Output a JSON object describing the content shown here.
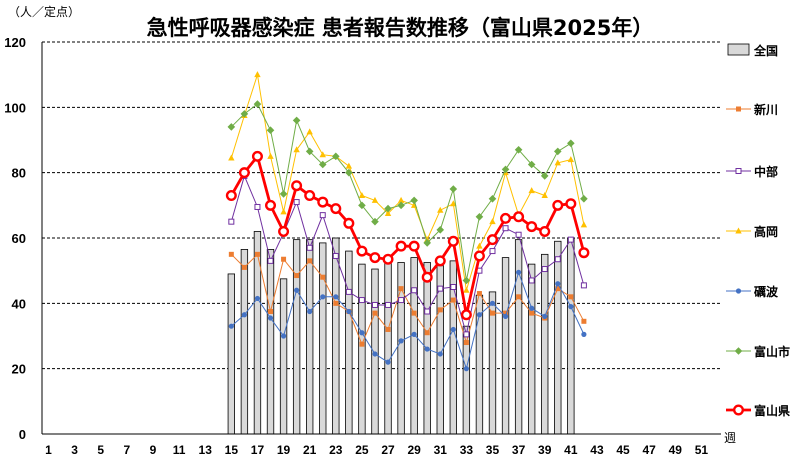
{
  "chart_data": {
    "type": "bar",
    "title": "急性呼吸器感染症 患者報告数推移（富山県2025年）",
    "ylabel": "（人／定点）",
    "xlabel": "週",
    "ylim": [
      0,
      120
    ],
    "yticks": [
      0,
      20,
      40,
      60,
      80,
      100,
      120
    ],
    "xlim": [
      1,
      52
    ],
    "xticks": [
      "1",
      "3",
      "5",
      "7",
      "9",
      "11",
      "13",
      "15",
      "17",
      "19",
      "21",
      "23",
      "25",
      "27",
      "29",
      "31",
      "33",
      "35",
      "37",
      "39",
      "41",
      "43",
      "45",
      "47",
      "49",
      "51"
    ],
    "grid": "horizontal dashed",
    "legend_position": "right",
    "bar_series": {
      "name": "全国",
      "x": [
        15,
        16,
        17,
        18,
        19,
        20,
        21,
        22,
        23,
        24,
        25,
        26,
        27,
        28,
        29,
        30,
        31,
        32,
        33,
        34,
        35,
        36,
        37,
        38,
        39,
        40,
        41
      ],
      "values": [
        49,
        56.5,
        62,
        56.5,
        47.5,
        59.5,
        59.5,
        58.5,
        60,
        56,
        52,
        50.5,
        52.5,
        52.5,
        54,
        52.5,
        51.5,
        53,
        33,
        42.5,
        43.5,
        54,
        59.5,
        52,
        55,
        59,
        60
      ],
      "color": "#d9d9d9"
    },
    "series": [
      {
        "name": "新川",
        "color": "#ed7d31",
        "marker": "square",
        "x": [
          15,
          16,
          17,
          18,
          19,
          20,
          21,
          22,
          23,
          24,
          25,
          26,
          27,
          28,
          29,
          30,
          31,
          32,
          33,
          34,
          35,
          36,
          37,
          38,
          39,
          40,
          41,
          42
        ],
        "values": [
          55,
          51,
          55,
          37.5,
          53.5,
          48.5,
          53,
          48,
          40,
          37.5,
          27.5,
          37,
          32,
          44.5,
          37,
          31,
          38,
          41,
          28,
          43,
          37,
          37,
          42,
          37,
          35.5,
          44.5,
          42,
          34.5
        ]
      },
      {
        "name": "中部",
        "color": "#7030a0",
        "marker": "open-square",
        "x": [
          15,
          16,
          17,
          18,
          19,
          20,
          21,
          22,
          23,
          24,
          25,
          26,
          27,
          28,
          29,
          30,
          31,
          32,
          33,
          34,
          35,
          36,
          37,
          38,
          39,
          40,
          41,
          42
        ],
        "values": [
          65,
          79,
          69.5,
          53,
          61.5,
          71,
          57,
          67,
          54.5,
          43.5,
          41,
          39.5,
          39.5,
          41,
          44,
          37.5,
          44.5,
          45,
          30.5,
          50,
          56,
          63,
          61,
          47,
          50.5,
          53.5,
          59.5,
          45.5
        ]
      },
      {
        "name": "高岡",
        "color": "#ffc000",
        "marker": "triangle",
        "x": [
          15,
          16,
          17,
          18,
          19,
          20,
          21,
          22,
          23,
          24,
          25,
          26,
          27,
          28,
          29,
          30,
          31,
          32,
          33,
          34,
          35,
          36,
          37,
          38,
          39,
          40,
          41,
          42
        ],
        "values": [
          84.5,
          97.5,
          110,
          85,
          68,
          87,
          92.5,
          85.5,
          85,
          82,
          73,
          71.5,
          67.5,
          71.5,
          70,
          59.5,
          68.5,
          70.5,
          44,
          57.5,
          65,
          80,
          67,
          74.5,
          73,
          83,
          84,
          64
        ]
      },
      {
        "name": "礪波",
        "color": "#4472c4",
        "marker": "circle",
        "x": [
          15,
          16,
          17,
          18,
          19,
          20,
          21,
          22,
          23,
          24,
          25,
          26,
          27,
          28,
          29,
          30,
          31,
          32,
          33,
          34,
          35,
          36,
          37,
          38,
          39,
          40,
          41,
          42
        ],
        "values": [
          33,
          36.5,
          41.5,
          35.5,
          30,
          44,
          37.5,
          42,
          42,
          37.5,
          31,
          24.5,
          22,
          28.5,
          30.5,
          26,
          24.5,
          32,
          20,
          36.5,
          40,
          36,
          49.5,
          38.5,
          36,
          46,
          39,
          30.5
        ]
      },
      {
        "name": "富山市",
        "color": "#70ad47",
        "marker": "diamond",
        "x": [
          15,
          16,
          17,
          18,
          19,
          20,
          21,
          22,
          23,
          24,
          25,
          26,
          27,
          28,
          29,
          30,
          31,
          32,
          33,
          34,
          35,
          36,
          37,
          38,
          39,
          40,
          41,
          42
        ],
        "values": [
          94,
          98,
          101,
          93,
          73.5,
          96,
          86.5,
          82.5,
          85,
          80,
          70,
          65,
          69,
          70,
          71.5,
          58.5,
          62.5,
          75,
          47,
          66.5,
          72,
          81,
          87,
          82.5,
          79,
          86.5,
          89,
          72
        ]
      },
      {
        "name": "富山県",
        "color": "#ff0000",
        "marker": "big-open-circle",
        "x": [
          15,
          16,
          17,
          18,
          19,
          20,
          21,
          22,
          23,
          24,
          25,
          26,
          27,
          28,
          29,
          30,
          31,
          32,
          33,
          34,
          35,
          36,
          37,
          38,
          39,
          40,
          41,
          42
        ],
        "values": [
          73,
          80,
          85,
          70,
          62,
          76,
          73,
          71,
          69,
          64.5,
          56,
          54,
          53.5,
          57.5,
          57.5,
          48,
          53,
          59,
          36.5,
          54.5,
          59.5,
          66,
          66.5,
          63.5,
          62,
          70,
          70.5,
          55.5
        ]
      }
    ]
  }
}
